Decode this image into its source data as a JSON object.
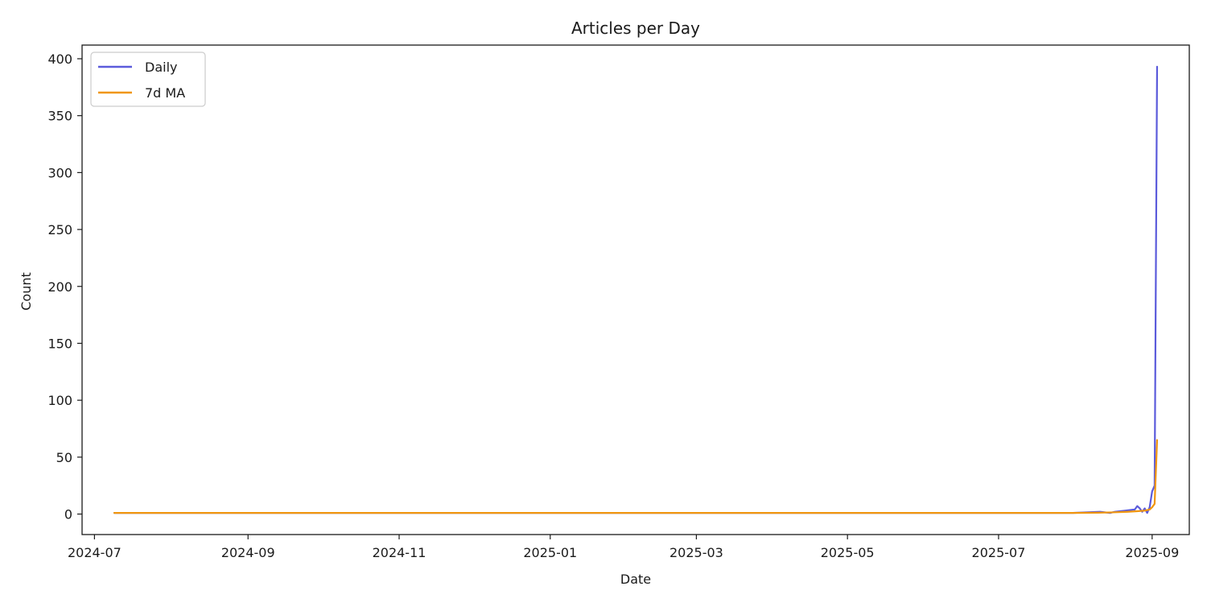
{
  "chart_data": {
    "type": "line",
    "title": "Articles per Day",
    "xlabel": "Date",
    "ylabel": "Count",
    "x_axis": {
      "kind": "date",
      "range": [
        "2024-06-26",
        "2025-09-16"
      ],
      "ticks": [
        "2024-07-01",
        "2024-09-01",
        "2024-11-01",
        "2025-01-01",
        "2025-03-01",
        "2025-05-01",
        "2025-07-01",
        "2025-09-01"
      ],
      "tick_labels": [
        "2024-07",
        "2024-09",
        "2024-11",
        "2025-01",
        "2025-03",
        "2025-05",
        "2025-07",
        "2025-09"
      ]
    },
    "y_axis": {
      "range": [
        -18,
        412
      ],
      "ticks": [
        0,
        50,
        100,
        150,
        200,
        250,
        300,
        350,
        400
      ],
      "tick_labels": [
        "0",
        "50",
        "100",
        "150",
        "200",
        "250",
        "300",
        "350",
        "400"
      ]
    },
    "grid": false,
    "legend": "top-left",
    "series": [
      {
        "name": "Daily",
        "color": "#5b5bdb",
        "points": [
          [
            "2024-07-09",
            1
          ],
          [
            "2024-08-15",
            1
          ],
          [
            "2024-10-01",
            1
          ],
          [
            "2024-12-01",
            1
          ],
          [
            "2025-02-01",
            1
          ],
          [
            "2025-04-01",
            1
          ],
          [
            "2025-06-01",
            1
          ],
          [
            "2025-07-31",
            1
          ],
          [
            "2025-08-05",
            1.5
          ],
          [
            "2025-08-11",
            2
          ],
          [
            "2025-08-15",
            1
          ],
          [
            "2025-08-17",
            2
          ],
          [
            "2025-08-21",
            3
          ],
          [
            "2025-08-25",
            4
          ],
          [
            "2025-08-26",
            7
          ],
          [
            "2025-08-27",
            5
          ],
          [
            "2025-08-28",
            2
          ],
          [
            "2025-08-29",
            5
          ],
          [
            "2025-08-30",
            1
          ],
          [
            "2025-08-31",
            6
          ],
          [
            "2025-09-01",
            20
          ],
          [
            "2025-09-02",
            25
          ],
          [
            "2025-09-03",
            393
          ]
        ]
      },
      {
        "name": "7d MA",
        "color": "#f0960f",
        "points": [
          [
            "2024-07-09",
            1
          ],
          [
            "2024-08-15",
            1
          ],
          [
            "2024-10-01",
            1
          ],
          [
            "2024-12-01",
            1
          ],
          [
            "2025-02-01",
            1
          ],
          [
            "2025-04-01",
            1
          ],
          [
            "2025-06-01",
            1
          ],
          [
            "2025-07-31",
            1
          ],
          [
            "2025-08-10",
            1.2
          ],
          [
            "2025-08-16",
            1.5
          ],
          [
            "2025-08-22",
            2
          ],
          [
            "2025-08-26",
            2.5
          ],
          [
            "2025-08-29",
            3
          ],
          [
            "2025-08-31",
            4
          ],
          [
            "2025-09-01",
            6
          ],
          [
            "2025-09-02",
            9
          ],
          [
            "2025-09-03",
            65
          ]
        ]
      }
    ]
  }
}
